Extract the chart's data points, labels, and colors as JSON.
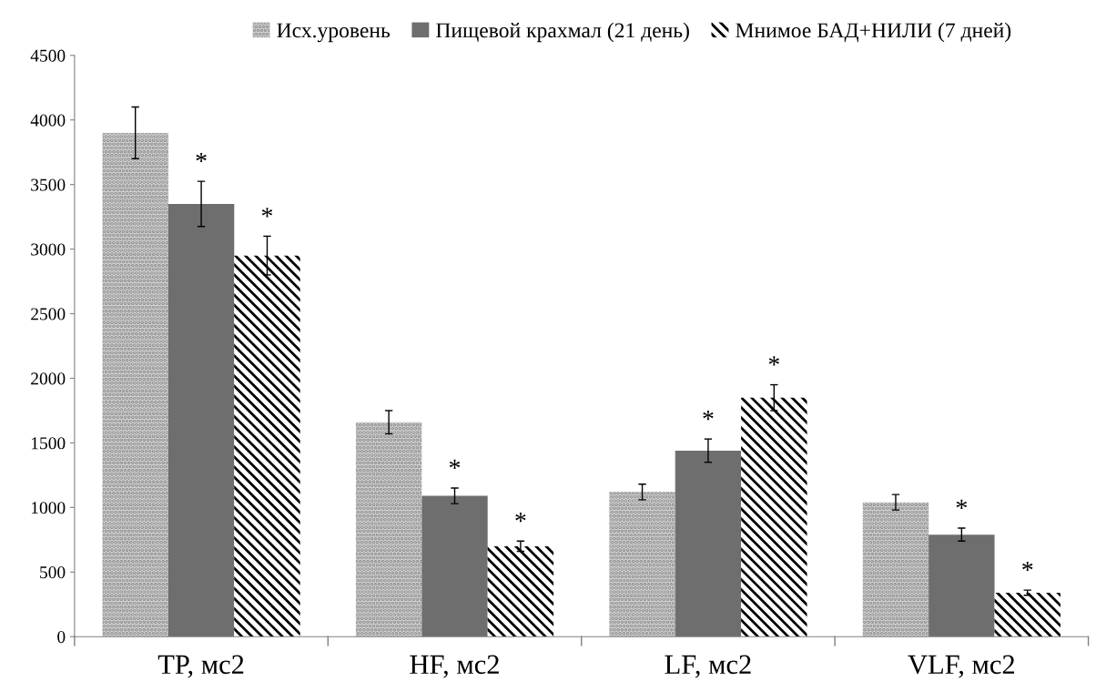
{
  "chart_data": {
    "type": "bar",
    "categories": [
      "TP, мс2",
      "HF, мс2",
      "LF, мс2",
      "VLF, мс2"
    ],
    "series": [
      {
        "name": "Исх.уровень",
        "color": "#d6d6d6",
        "values": [
          3900,
          1660,
          1120,
          1040
        ],
        "errors": [
          200,
          90,
          60,
          60
        ]
      },
      {
        "name": "Пищевой крахмал (21 день)",
        "color": "#6e6e6e",
        "values": [
          3350,
          1090,
          1440,
          790
        ],
        "errors": [
          175,
          60,
          90,
          50
        ],
        "value_labels": [
          "*",
          "*",
          "*",
          "*"
        ]
      },
      {
        "name": "Мнимое БАД+НИЛИ (7 дней)",
        "color": "#000000",
        "values": [
          2950,
          700,
          1850,
          340
        ],
        "errors": [
          150,
          40,
          100,
          20
        ],
        "value_labels": [
          "*",
          "*",
          "*",
          "*"
        ]
      }
    ],
    "ylim": [
      0,
      4500
    ],
    "yticks": [
      0,
      500,
      1000,
      1500,
      2000,
      2500,
      3000,
      3500,
      4000,
      4500
    ],
    "grid": false,
    "legend": "top"
  }
}
